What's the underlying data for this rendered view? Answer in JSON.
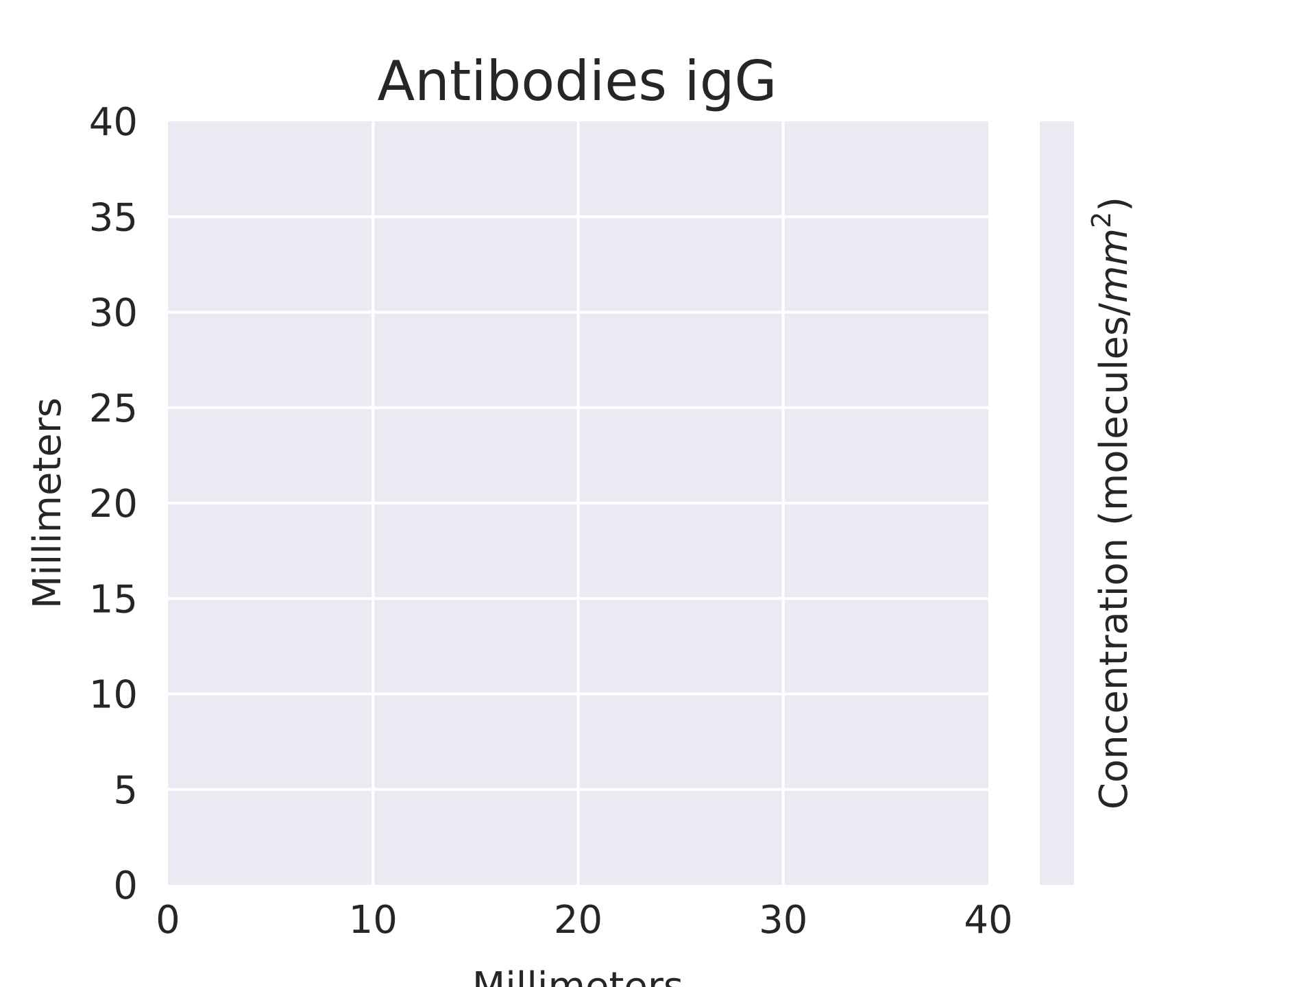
{
  "chart_data": {
    "type": "heatmap",
    "title": "Antibodies igG",
    "xlabel": "Millimeters",
    "ylabel": "Millimeters",
    "colorbar_label": "Concentration (molecules/",
    "colorbar_label_unit_base": "mm",
    "colorbar_label_unit_exp": "2",
    "colorbar_label_close": ")",
    "xlim": [
      0,
      40
    ],
    "ylim": [
      0,
      40
    ],
    "x_ticks": [
      0,
      10,
      20,
      30,
      40
    ],
    "y_ticks": [
      0,
      5,
      10,
      15,
      20,
      25,
      30,
      35,
      40
    ],
    "x_tick_labels": [
      "0",
      "10",
      "20",
      "30",
      "40"
    ],
    "y_tick_labels": [
      "0",
      "5",
      "10",
      "15",
      "20",
      "25",
      "30",
      "35",
      "40"
    ],
    "values": [],
    "grid": true,
    "colors": {
      "axes_background": "#eaeaf2",
      "grid": "#ffffff",
      "text": "#262626",
      "colorbar": "#eaeaf2"
    }
  }
}
